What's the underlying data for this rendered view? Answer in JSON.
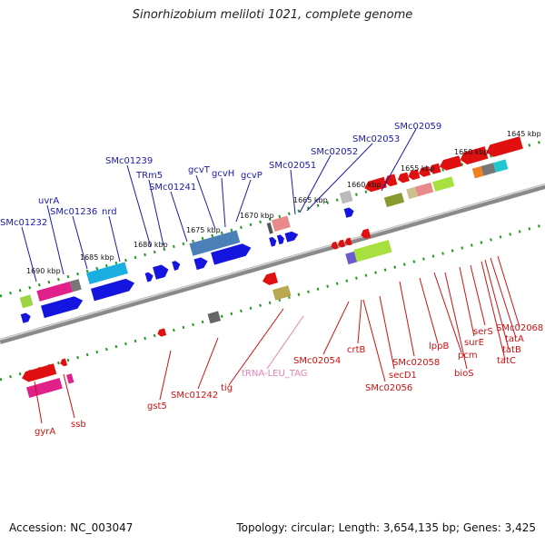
{
  "title": "Sinorhizobium meliloti 1021, complete genome",
  "footer": {
    "accession": "Accession: NC_003047",
    "topology": "Topology: circular; Length: 3,654,135 bp; Genes: 3,425"
  },
  "colors": {
    "backbone": "#8a8a8a",
    "top_labels": "#1a1aa8",
    "bottom_labels": "#cc1111",
    "trna_label": "#e87fb8",
    "ruler_dots": "#1f9a1f"
  },
  "ruler_upper": [
    "1645 kbp",
    "1650 kbp",
    "1655 kbp",
    "1660 kbp",
    "1665 kbp",
    "1670 kbp",
    "1675 kbp",
    "1680 kbp",
    "1685 kbp",
    "1690 kbp"
  ],
  "genes_top": [
    {
      "name": "SMc02059",
      "color": "#1a1aa8"
    },
    {
      "name": "SMc02053",
      "color": "#1a1aa8"
    },
    {
      "name": "SMc02052",
      "color": "#1a1aa8"
    },
    {
      "name": "SMc02051",
      "color": "#1a1aa8"
    },
    {
      "name": "gcvP",
      "color": "#1a1aa8"
    },
    {
      "name": "gcvH",
      "color": "#1a1aa8"
    },
    {
      "name": "gcvT",
      "color": "#1a1aa8"
    },
    {
      "name": "SMc01241",
      "color": "#1a1aa8"
    },
    {
      "name": "TRm5",
      "color": "#1a1aa8"
    },
    {
      "name": "SMc01239",
      "color": "#1a1aa8"
    },
    {
      "name": "nrd",
      "color": "#1a1aa8"
    },
    {
      "name": "SMc01236",
      "color": "#1a1aa8"
    },
    {
      "name": "uvrA",
      "color": "#1a1aa8"
    },
    {
      "name": "SMc01232",
      "color": "#1a1aa8"
    }
  ],
  "genes_bottom": [
    {
      "name": "gyrA"
    },
    {
      "name": "ssb"
    },
    {
      "name": "gst5"
    },
    {
      "name": "SMc01242"
    },
    {
      "name": "tig"
    },
    {
      "name": "tRNA-LEU_TAG"
    },
    {
      "name": "SMc02054"
    },
    {
      "name": "crtB"
    },
    {
      "name": "secD1"
    },
    {
      "name": "SMc02056"
    },
    {
      "name": "SMc02058"
    },
    {
      "name": "lppB"
    },
    {
      "name": "pcm"
    },
    {
      "name": "bioS"
    },
    {
      "name": "surE"
    },
    {
      "name": "serS"
    },
    {
      "name": "tatC"
    },
    {
      "name": "tatB"
    },
    {
      "name": "tatA"
    },
    {
      "name": "SMc02068"
    }
  ]
}
